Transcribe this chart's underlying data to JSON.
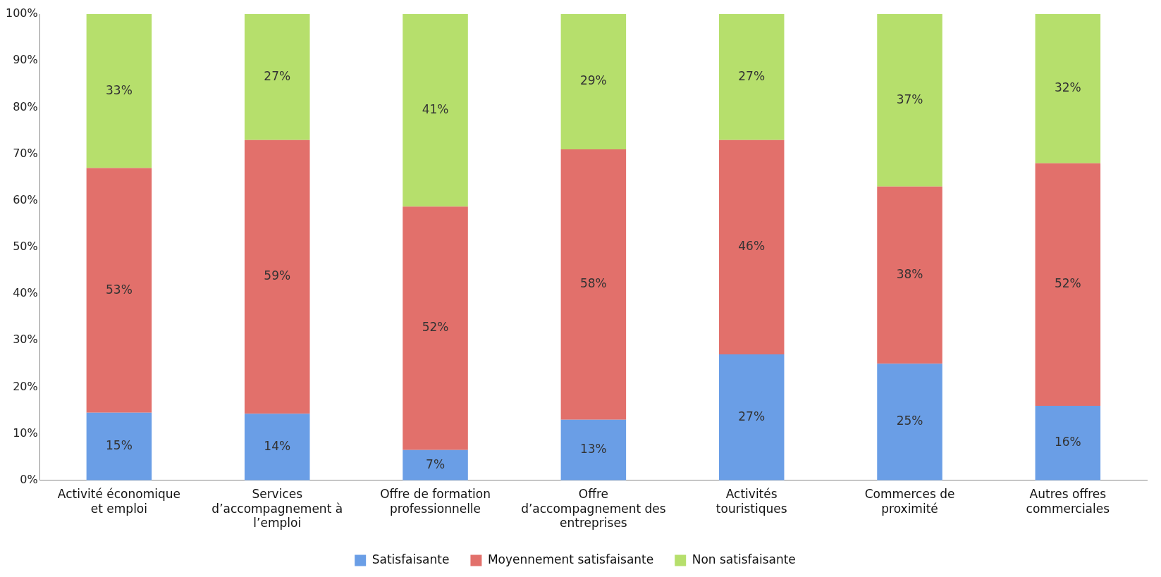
{
  "chart_data": {
    "type": "bar",
    "stacked": true,
    "categories": [
      "Activité économique et emploi",
      "Services d’accompagnement à l’emploi",
      "Offre de formation professionnelle",
      "Offre d’accompagnement des entreprises",
      "Activités touristiques",
      "Commerces de proximité",
      "Autres offres commerciales"
    ],
    "series": [
      {
        "name": "Satisfaisante",
        "color": "#6a9ee6",
        "values": [
          14.5,
          14.3,
          6.5,
          13,
          27,
          25,
          16
        ],
        "value_labels": [
          "15%",
          "14%",
          "7%",
          "13%",
          "27%",
          "25%",
          "16%"
        ]
      },
      {
        "name": "Moyennement satisfaisante",
        "color": "#e2706b",
        "values": [
          52.5,
          58.7,
          52.2,
          58,
          46,
          38,
          52
        ],
        "value_labels": [
          "53%",
          "59%",
          "52%",
          "58%",
          "46%",
          "38%",
          "52%"
        ]
      },
      {
        "name": "Non satisfaisante",
        "color": "#b6df6c",
        "values": [
          33,
          27,
          41.3,
          29,
          27,
          37,
          32
        ],
        "value_labels": [
          "33%",
          "27%",
          "41%",
          "29%",
          "27%",
          "37%",
          "32%"
        ]
      }
    ],
    "ylim": [
      0,
      100
    ],
    "yticks": [
      {
        "value": 0,
        "label": "0%"
      },
      {
        "value": 10,
        "label": "10%"
      },
      {
        "value": 20,
        "label": "20%"
      },
      {
        "value": 30,
        "label": "30%"
      },
      {
        "value": 40,
        "label": "40%"
      },
      {
        "value": 50,
        "label": "50%"
      },
      {
        "value": 60,
        "label": "60%"
      },
      {
        "value": 70,
        "label": "70%"
      },
      {
        "value": 80,
        "label": "80%"
      },
      {
        "value": 90,
        "label": "90%"
      },
      {
        "value": 100,
        "label": "100%"
      }
    ],
    "legend": "bottom"
  }
}
